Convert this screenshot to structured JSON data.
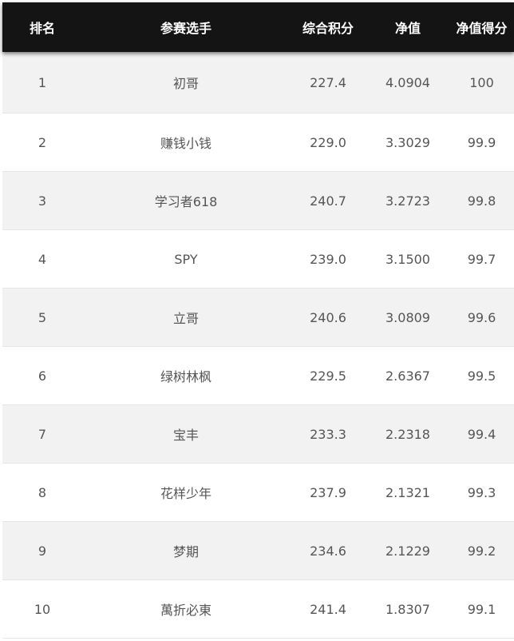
{
  "columns": {
    "rank": "排名",
    "player": "参赛选手",
    "total_score": "综合积分",
    "nav": "净值",
    "nav_score": "净值得分"
  },
  "rows": [
    {
      "rank": "1",
      "player": "初哥",
      "total_score": "227.4",
      "nav": "4.0904",
      "nav_score": "100"
    },
    {
      "rank": "2",
      "player": "赚钱小钱",
      "total_score": "229.0",
      "nav": "3.3029",
      "nav_score": "99.9"
    },
    {
      "rank": "3",
      "player": "学习者618",
      "total_score": "240.7",
      "nav": "3.2723",
      "nav_score": "99.8"
    },
    {
      "rank": "4",
      "player": "SPY",
      "total_score": "239.0",
      "nav": "3.1500",
      "nav_score": "99.7"
    },
    {
      "rank": "5",
      "player": "立哥",
      "total_score": "240.6",
      "nav": "3.0809",
      "nav_score": "99.6"
    },
    {
      "rank": "6",
      "player": "绿树林枫",
      "total_score": "229.5",
      "nav": "2.6367",
      "nav_score": "99.5"
    },
    {
      "rank": "7",
      "player": "宝丰",
      "total_score": "233.3",
      "nav": "2.2318",
      "nav_score": "99.4"
    },
    {
      "rank": "8",
      "player": "花样少年",
      "total_score": "237.9",
      "nav": "2.1321",
      "nav_score": "99.3"
    },
    {
      "rank": "9",
      "player": "梦期",
      "total_score": "234.6",
      "nav": "2.1229",
      "nav_score": "99.2"
    },
    {
      "rank": "10",
      "player": "萬折必東",
      "total_score": "241.4",
      "nav": "1.8307",
      "nav_score": "99.1"
    }
  ]
}
